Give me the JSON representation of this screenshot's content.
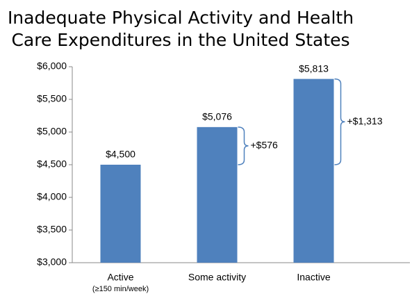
{
  "chart_data": {
    "type": "bar",
    "title": "Inadequate Physical Activity and Health Care Expenditures in the United States",
    "categories": [
      "Active",
      "Some activity",
      "Inactive"
    ],
    "x_sublabels": [
      "(≥150 min/week)",
      null,
      null
    ],
    "values": [
      4500,
      5076,
      5813
    ],
    "value_labels": [
      "$4,500",
      "$5,076",
      "$5,813"
    ],
    "color": "#4f81bd",
    "ylim": [
      3000,
      6000
    ],
    "yticks": [
      {
        "value": 3000,
        "label": "$3,000"
      },
      {
        "value": 3500,
        "label": "$3,500"
      },
      {
        "value": 4000,
        "label": "$4,000"
      },
      {
        "value": 4500,
        "label": "$4,500"
      },
      {
        "value": 5000,
        "label": "$5,000"
      },
      {
        "value": 5500,
        "label": "$5,500"
      },
      {
        "value": 6000,
        "label": "$6,000"
      }
    ],
    "annotations": [
      {
        "label": "+$576",
        "value": 576
      },
      {
        "label": "+$1,313",
        "value": 1313
      }
    ]
  }
}
